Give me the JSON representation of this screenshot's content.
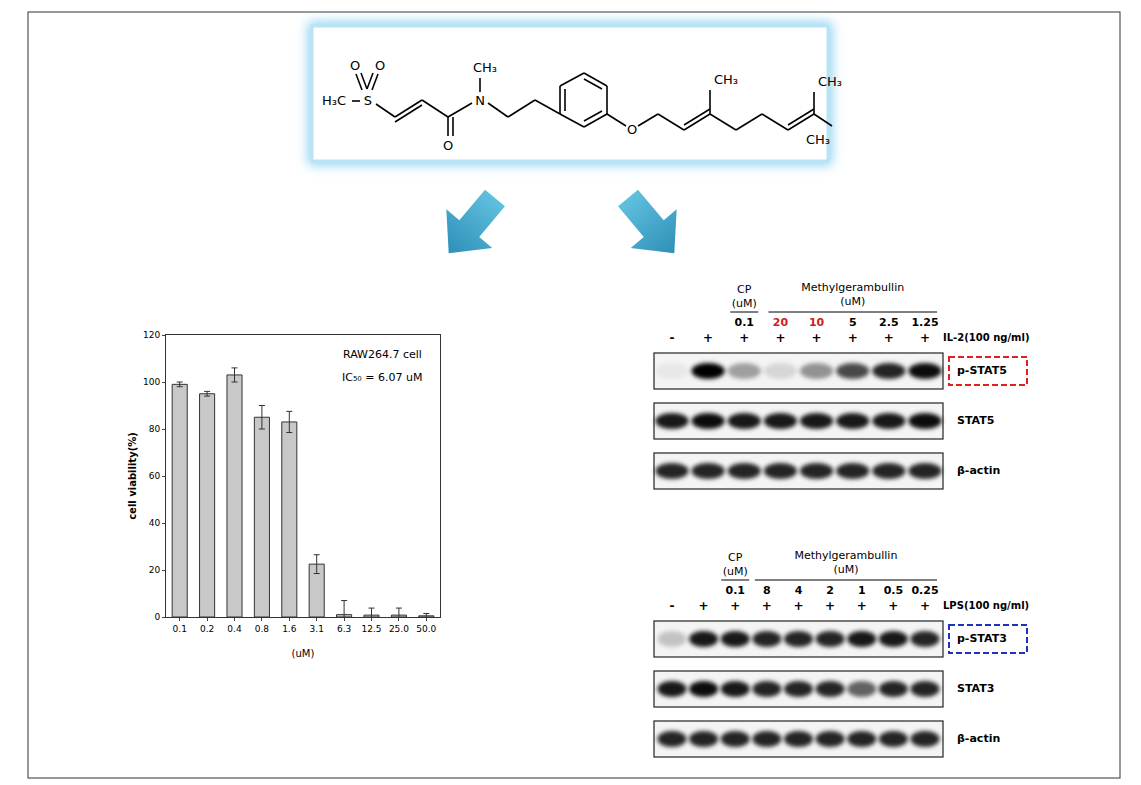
{
  "chart_data": {
    "type": "bar",
    "categories": [
      "0.1",
      "0.2",
      "0.4",
      "0.8",
      "1.6",
      "3.1",
      "6.3",
      "12.5",
      "25.0",
      "50.0"
    ],
    "values": [
      99,
      95,
      103,
      85,
      83,
      22.5,
      1,
      0.8,
      0.8,
      0.5
    ],
    "errors": [
      1,
      1,
      3,
      5,
      4.5,
      4,
      6,
      3,
      3,
      1
    ],
    "color": "#c8c8c8",
    "xlabel": "(uM)",
    "ylabel": "cell viability(%)",
    "ylim": [
      0,
      120
    ],
    "yticks": [
      0,
      20,
      40,
      60,
      80,
      100,
      120
    ],
    "annotations": [
      "RAW264.7 cell",
      "IC₅₀ = 6.07 uM"
    ]
  },
  "structure": {
    "atoms": [
      "O",
      "O",
      "S",
      "H₃C",
      "O",
      "N",
      "CH₃",
      "O",
      "CH₃",
      "CH₃",
      "CH₃"
    ]
  },
  "blots": [
    {
      "control_label": [
        "CP",
        "(uM)"
      ],
      "control_dose": "0.1",
      "drug_label": [
        "Methylgerambullin",
        "(uM)"
      ],
      "drug_doses": [
        {
          "text": "20",
          "color": "#d02020"
        },
        {
          "text": "10",
          "color": "#d02020"
        },
        {
          "text": "5",
          "color": "#000000"
        },
        {
          "text": "2.5",
          "color": "#000000"
        },
        {
          "text": "1.25",
          "color": "#000000"
        }
      ],
      "signs": [
        "-",
        "+",
        "+",
        "+",
        "+",
        "+",
        "+",
        "+"
      ],
      "stimulus": "IL-2(100 ng/ml)",
      "rows": [
        {
          "label": "p-STAT5",
          "box_color": "#e02020",
          "bands": [
            0.05,
            1.0,
            0.35,
            0.12,
            0.4,
            0.7,
            0.85,
            0.95
          ]
        },
        {
          "label": "STAT5",
          "bands": [
            0.9,
            0.95,
            0.9,
            0.9,
            0.9,
            0.9,
            0.9,
            0.95
          ]
        },
        {
          "label": "β-actin",
          "bands": [
            0.85,
            0.85,
            0.85,
            0.85,
            0.85,
            0.85,
            0.85,
            0.85
          ]
        }
      ]
    },
    {
      "control_label": [
        "CP",
        "(uM)"
      ],
      "control_dose": "0.1",
      "drug_label": [
        "Methylgerambullin",
        "(uM)"
      ],
      "drug_doses": [
        {
          "text": "8",
          "color": "#000000"
        },
        {
          "text": "4",
          "color": "#000000"
        },
        {
          "text": "2",
          "color": "#000000"
        },
        {
          "text": "1",
          "color": "#000000"
        },
        {
          "text": "0.5",
          "color": "#000000"
        },
        {
          "text": "0.25",
          "color": "#000000"
        }
      ],
      "signs": [
        "-",
        "+",
        "+",
        "+",
        "+",
        "+",
        "+",
        "+",
        "+"
      ],
      "stimulus": "LPS(100 ng/ml)",
      "rows": [
        {
          "label": "p-STAT3",
          "box_color": "#2030c0",
          "bands": [
            0.2,
            0.9,
            0.9,
            0.85,
            0.85,
            0.85,
            0.9,
            0.9,
            0.85
          ]
        },
        {
          "label": "STAT3",
          "bands": [
            0.9,
            0.95,
            0.9,
            0.85,
            0.85,
            0.85,
            0.6,
            0.85,
            0.85
          ]
        },
        {
          "label": "β-actin",
          "bands": [
            0.85,
            0.85,
            0.85,
            0.85,
            0.85,
            0.85,
            0.85,
            0.85,
            0.85
          ]
        }
      ]
    }
  ]
}
